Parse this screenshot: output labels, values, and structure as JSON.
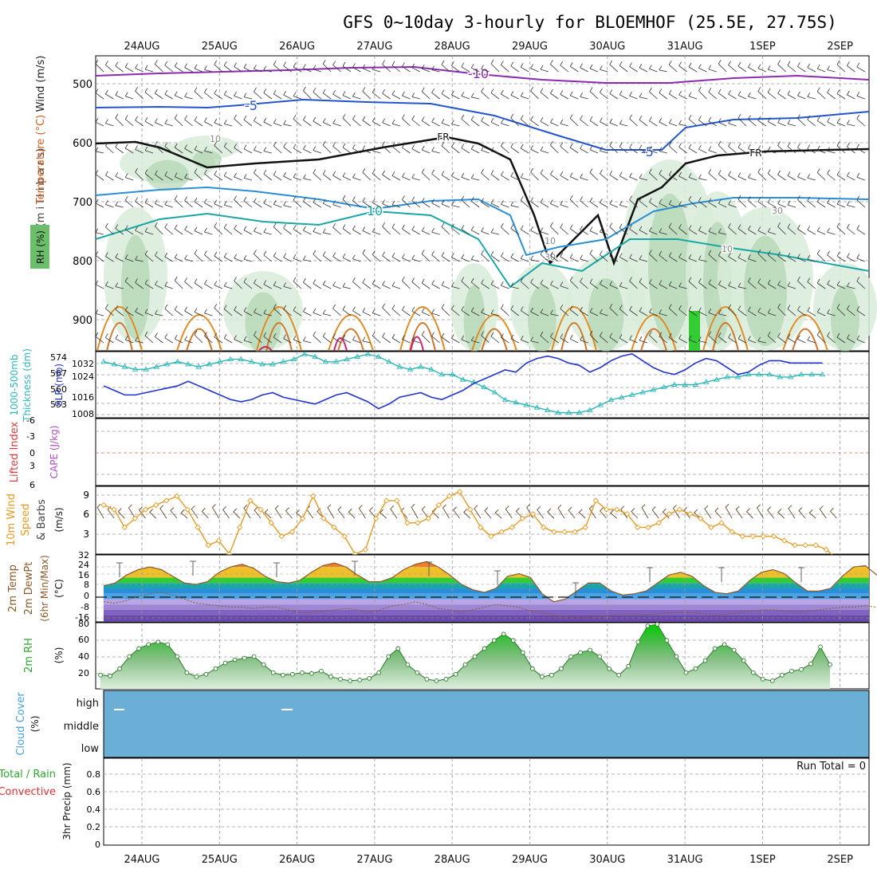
{
  "title": "GFS 0~10day 3-hourly for BLOEMHOF (25.5E, 27.75S)",
  "dates": [
    "24AUG",
    "25AUG",
    "26AUG",
    "27AUG",
    "28AUG",
    "29AUG",
    "30AUG",
    "31AUG",
    "1SEP",
    "2SEP"
  ],
  "colors": {
    "grid": "#9a9a9a",
    "refline": "#e06060",
    "thickness": "#2fb7b7",
    "slp": "#2233cc",
    "wind": "#e69a22",
    "temp_fill": "#8a5a2a",
    "dewpoint": "#8a5a2a",
    "rh": "#2ea82e",
    "cloud": "#6baed6",
    "t_minus10": "#8a2bb0",
    "t_minus5": "#2255cc",
    "t_freeze": "#111111",
    "t_10": "#1aa6a6",
    "t_warm": "#e08a20",
    "t_hot": "#d0206a"
  },
  "panels": {
    "upper": {
      "ylabel_wind": "Wind (m/s)",
      "ylabel_temp": "Temperature (°C)",
      "ylabel_rh": "RH (%)",
      "ylabel_axis": "(m i l l i b a r s)",
      "ticks": [
        "500",
        "600",
        "700",
        "800",
        "900"
      ],
      "contour_labels": [
        "-10",
        "-5",
        "-5",
        "FR",
        "FR",
        "10",
        "10",
        "30",
        "10",
        "30",
        "10"
      ]
    },
    "thick": {
      "ylabel_1": "1000-500mb",
      "ylabel_2": "Thickness (dm)",
      "ylabel_3": "SLP (mb)",
      "left_ticks": [
        "574",
        "567",
        "560",
        "553"
      ],
      "right_ticks": [
        "1032",
        "1024",
        "1016",
        "1008"
      ]
    },
    "cape": {
      "ylabel_1": "Lifted Index",
      "ylabel_2": "CAPE (J/kg)",
      "ticks": [
        "-6",
        "-3",
        "0",
        "3",
        "6"
      ]
    },
    "wind10": {
      "ylabel_1": "10m Wind",
      "ylabel_2": "Speed",
      "ylabel_3": "& Barbs",
      "ylabel_4": "(m/s)",
      "ticks": [
        "9",
        "6",
        "3"
      ]
    },
    "temp": {
      "ylabel_1": "2m Temp",
      "ylabel_2": "2m DewPt",
      "ylabel_3": "(6hr Min/Max)",
      "ylabel_4": "(°C)",
      "ticks": [
        "32",
        "24",
        "16",
        "8",
        "0",
        "-8",
        "-16"
      ]
    },
    "rh2m": {
      "ylabel_1": "2m RH",
      "ylabel_2": "(%)",
      "ticks": [
        "80",
        "60",
        "40",
        "20"
      ]
    },
    "cloud": {
      "ylabel_1": "Cloud Cover",
      "ylabel_2": "(%)",
      "levels": [
        "high",
        "middle",
        "low"
      ]
    },
    "precip": {
      "ylabel_1": "Total / Rain",
      "ylabel_2": "Convective",
      "ylabel_3": "3hr Precip (mm)",
      "ticks": [
        "0.8",
        "0.6",
        "0.4",
        "0.2",
        "0"
      ],
      "run_total": "Run Total = 0"
    }
  },
  "chart_data": [
    {
      "type": "line",
      "title": "1000-500mb Thickness (dm) / SLP (mb)",
      "x_step_hours": 3,
      "series": [
        {
          "name": "1000-500mb Thickness (dm)",
          "ylim": [
            550,
            576
          ],
          "values": [
            572,
            571,
            570,
            569,
            569,
            570,
            571,
            572,
            571,
            570,
            571,
            572,
            573,
            573,
            572,
            571,
            571,
            572,
            573,
            575,
            574,
            572,
            572,
            573,
            574,
            575,
            574,
            572,
            570,
            569,
            570,
            569,
            567,
            567,
            565,
            564,
            562,
            560,
            557,
            556,
            555,
            554,
            553,
            552,
            552,
            552,
            553,
            555,
            557,
            558,
            559,
            560,
            561,
            562,
            563,
            563,
            563,
            564,
            565,
            566,
            566,
            567,
            567,
            567,
            566,
            566,
            567,
            567,
            567
          ]
        },
        {
          "name": "SLP (mb)",
          "ylim": [
            1006,
            1035
          ],
          "values": [
            1020,
            1018,
            1016,
            1016,
            1017,
            1018,
            1019,
            1020,
            1022,
            1020,
            1018,
            1016,
            1014,
            1013,
            1014,
            1016,
            1017,
            1015,
            1014,
            1013,
            1012,
            1014,
            1016,
            1017,
            1015,
            1013,
            1010,
            1012,
            1015,
            1016,
            1017,
            1015,
            1014,
            1016,
            1018,
            1021,
            1023,
            1025,
            1027,
            1026,
            1030,
            1032,
            1033,
            1032,
            1030,
            1029,
            1026,
            1028,
            1031,
            1033,
            1034,
            1031,
            1028,
            1026,
            1025,
            1027,
            1030,
            1032,
            1031,
            1028,
            1025,
            1026,
            1029,
            1031,
            1031,
            1030,
            1030,
            1030,
            1030
          ]
        }
      ]
    },
    {
      "type": "line",
      "title": "10m Wind Speed (m/s)",
      "x_step_hours": 3,
      "ylim": [
        2,
        9.6
      ],
      "series": [
        {
          "name": "10m Wind Speed (m/s)",
          "values": [
            7.5,
            7,
            5,
            6,
            7,
            7.5,
            8,
            8.5,
            7,
            5,
            3,
            3.5,
            2,
            5,
            8,
            7,
            5.5,
            4,
            4.5,
            6,
            8.5,
            6,
            5,
            4,
            2,
            2.5,
            6,
            8,
            8,
            5.5,
            5.5,
            6,
            7.5,
            8.5,
            9,
            7,
            5,
            4,
            4.5,
            5,
            6,
            6.5,
            5,
            4.5,
            4.5,
            4.5,
            5,
            8,
            7,
            7,
            6.5,
            5,
            5,
            5.5,
            6.5,
            7,
            6.5,
            6,
            5,
            5.5,
            4.5,
            4,
            4,
            4,
            4,
            3.5,
            3,
            3,
            3,
            2.5,
            1.5
          ]
        }
      ]
    },
    {
      "type": "area",
      "title": "2m Temp (°C)",
      "x_step_hours": 3,
      "ylim": [
        -17,
        33
      ],
      "series": [
        {
          "name": "2m Temp",
          "values": [
            10,
            12,
            18,
            22,
            24,
            22,
            17,
            12,
            11,
            13,
            20,
            24,
            26,
            23,
            17,
            13,
            12,
            14,
            20,
            25,
            27,
            24,
            18,
            13,
            13,
            16,
            22,
            26,
            28,
            24,
            18,
            11,
            7,
            5,
            8,
            17,
            19,
            16,
            4,
            -2,
            0,
            6,
            12,
            12,
            6,
            3,
            4,
            6,
            12,
            18,
            20,
            17,
            10,
            5,
            4,
            6,
            14,
            20,
            22,
            19,
            12,
            6,
            6,
            8,
            17,
            24,
            25,
            18,
            11,
            9,
            14
          ]
        },
        {
          "name": "2m DewPt",
          "values": [
            -2,
            -3,
            -1,
            2,
            4,
            5,
            3,
            0,
            -3,
            -4,
            -5,
            -6,
            -6,
            -7,
            -6,
            -6,
            -8,
            -10,
            -10,
            -9,
            -8,
            -7,
            -8,
            -10,
            -8,
            -5,
            -4,
            -2,
            -4,
            -7,
            -8,
            -10,
            -8,
            -6,
            -4,
            -5,
            -6,
            -9,
            -10,
            -12,
            -13,
            -14,
            -14,
            -13,
            -12,
            -11,
            -11,
            -12,
            -11,
            -10,
            -10,
            -10,
            -11,
            -12,
            -11,
            -10,
            -9,
            -8,
            -8,
            -9,
            -10,
            -9,
            -8,
            -7,
            -6,
            -6,
            -5,
            -6,
            -7,
            -7,
            -6
          ]
        }
      ]
    },
    {
      "type": "area",
      "title": "2m RH (%)",
      "x_step_hours": 3,
      "ylim": [
        0,
        82
      ],
      "series": [
        {
          "name": "2m RH (%)",
          "values": [
            17,
            16,
            25,
            40,
            50,
            55,
            58,
            55,
            40,
            20,
            15,
            18,
            25,
            32,
            36,
            38,
            40,
            30,
            20,
            17,
            18,
            20,
            19,
            22,
            15,
            12,
            10,
            11,
            13,
            20,
            40,
            50,
            30,
            20,
            12,
            10,
            12,
            18,
            30,
            40,
            50,
            60,
            68,
            60,
            45,
            25,
            15,
            17,
            25,
            40,
            45,
            48,
            40,
            25,
            17,
            28,
            58,
            78,
            80,
            60,
            40,
            20,
            25,
            35,
            50,
            55,
            48,
            35,
            20,
            12,
            10,
            17,
            22,
            24,
            31,
            52,
            30
          ]
        }
      ]
    },
    {
      "type": "bar",
      "title": "3hr Precip (mm)",
      "ylim": [
        0,
        0.95
      ],
      "series": [
        {
          "name": "Total / Rain",
          "values": []
        },
        {
          "name": "Convective",
          "values": []
        }
      ]
    }
  ]
}
